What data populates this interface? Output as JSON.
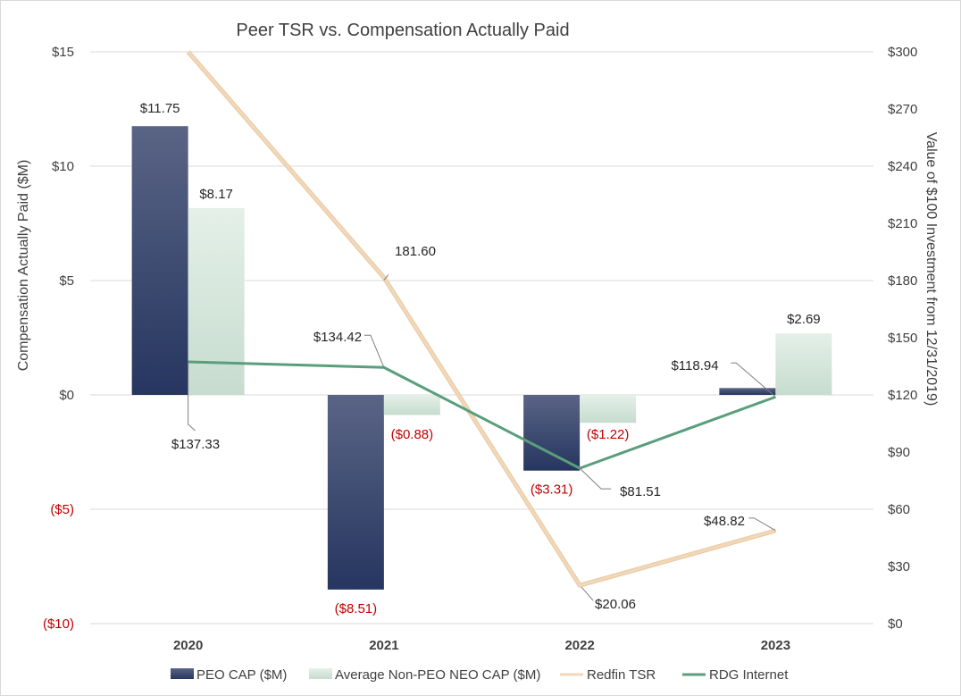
{
  "chart_data": {
    "type": "bar+line",
    "title": "Peer TSR vs. Compensation Actually Paid",
    "categories": [
      "2020",
      "2021",
      "2022",
      "2023"
    ],
    "y_left": {
      "label": "Compensation Actually Paid ($M)",
      "range": [
        -10,
        15
      ],
      "ticks": [
        15,
        10,
        5,
        0,
        -5,
        -10
      ],
      "tick_labels": [
        "$15",
        "$10",
        "$5",
        "$0",
        "($5)",
        "($10)"
      ]
    },
    "y_right": {
      "label": "Value of $100 Investment from 12/31/2019)",
      "range": [
        0,
        300
      ],
      "ticks": [
        300,
        270,
        240,
        210,
        180,
        150,
        120,
        90,
        60,
        30,
        0
      ],
      "tick_labels": [
        "$300",
        "$270",
        "$240",
        "$210",
        "$180",
        "$150",
        "$120",
        "$90",
        "$60",
        "$30",
        "$0"
      ]
    },
    "bar_series": [
      {
        "name": "PEO CAP ($M)",
        "values": [
          11.75,
          -8.51,
          -3.31,
          0.3
        ],
        "labels": [
          "$11.75",
          "($8.51)",
          "($3.31)",
          ""
        ]
      },
      {
        "name": "Average Non-PEO NEO CAP ($M)",
        "values": [
          8.17,
          -0.88,
          -1.22,
          2.69
        ],
        "labels": [
          "$8.17",
          "($0.88)",
          "($1.22)",
          "$2.69"
        ]
      }
    ],
    "line_series": [
      {
        "name": "Redfin TSR",
        "values": [
          300,
          181.6,
          20.06,
          48.82
        ],
        "labels": [
          "",
          "181.60",
          "$20.06",
          "$48.82"
        ]
      },
      {
        "name": "RDG Internet",
        "values": [
          137.33,
          134.42,
          81.51,
          118.94
        ],
        "labels": [
          "$137.33",
          "$134.42",
          "$81.51",
          "$118.94"
        ]
      }
    ],
    "legend": {
      "position": "bottom",
      "items": [
        "PEO CAP ($M)",
        "Average Non-PEO NEO CAP ($M)",
        "Redfin TSR",
        "RDG Internet"
      ]
    },
    "colors": {
      "peo_top": "#5a6485",
      "peo_bottom": "#263660",
      "neo_top": "#e4f0e8",
      "neo_bottom": "#c7dccf",
      "redfin": "#f2d8b8",
      "rdg": "#5a9e7c",
      "negative_label": "#c00000",
      "gridline": "#d9d9d9"
    }
  }
}
